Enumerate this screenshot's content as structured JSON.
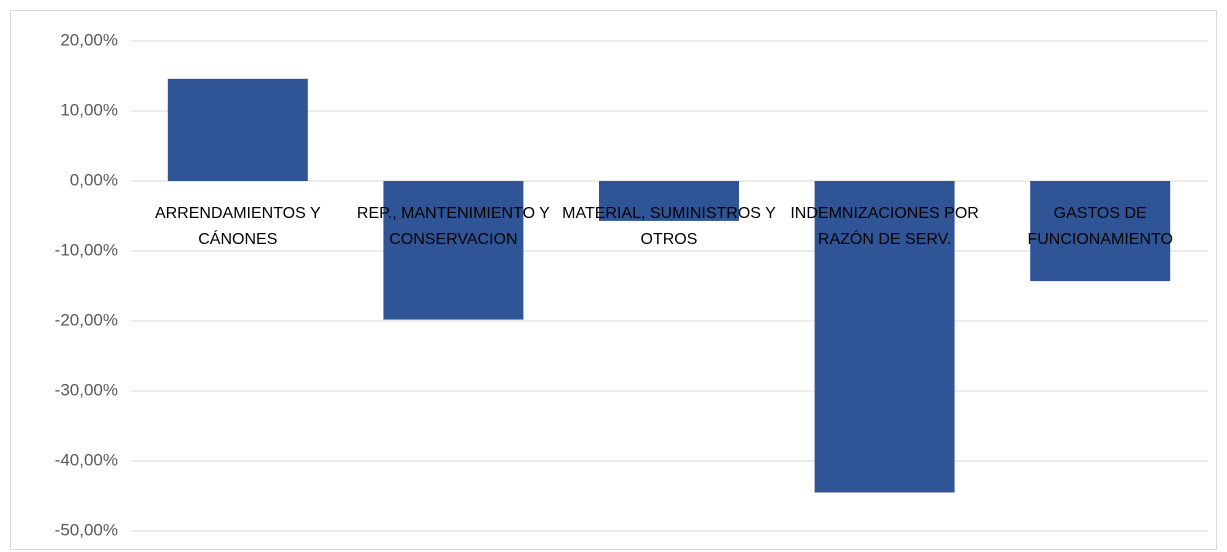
{
  "chart_data": {
    "type": "bar",
    "categories": [
      "ARRENDAMIENTOS Y CÁNONES",
      "REP., MANTENIMIENTO Y CONSERVACION",
      "MATERIAL, SUMINISTROS Y OTROS",
      "INDEMNIZACIONES POR RAZÓN DE SERV.",
      "GASTOS DE FUNCIONAMIENTO"
    ],
    "values": [
      14.6,
      -19.8,
      -5.7,
      -44.5,
      -14.3
    ],
    "color": "#2f5597",
    "ylim": [
      -50,
      20
    ],
    "yticks": [
      {
        "value": 20,
        "label": "20,00%"
      },
      {
        "value": 10,
        "label": "10,00%"
      },
      {
        "value": 0,
        "label": "0,00%"
      },
      {
        "value": -10,
        "label": "-10,00%"
      },
      {
        "value": -20,
        "label": "-20,00%"
      },
      {
        "value": -30,
        "label": "-30,00%"
      },
      {
        "value": -40,
        "label": "-40,00%"
      },
      {
        "value": -50,
        "label": "-50,00%"
      }
    ],
    "grid": true
  }
}
